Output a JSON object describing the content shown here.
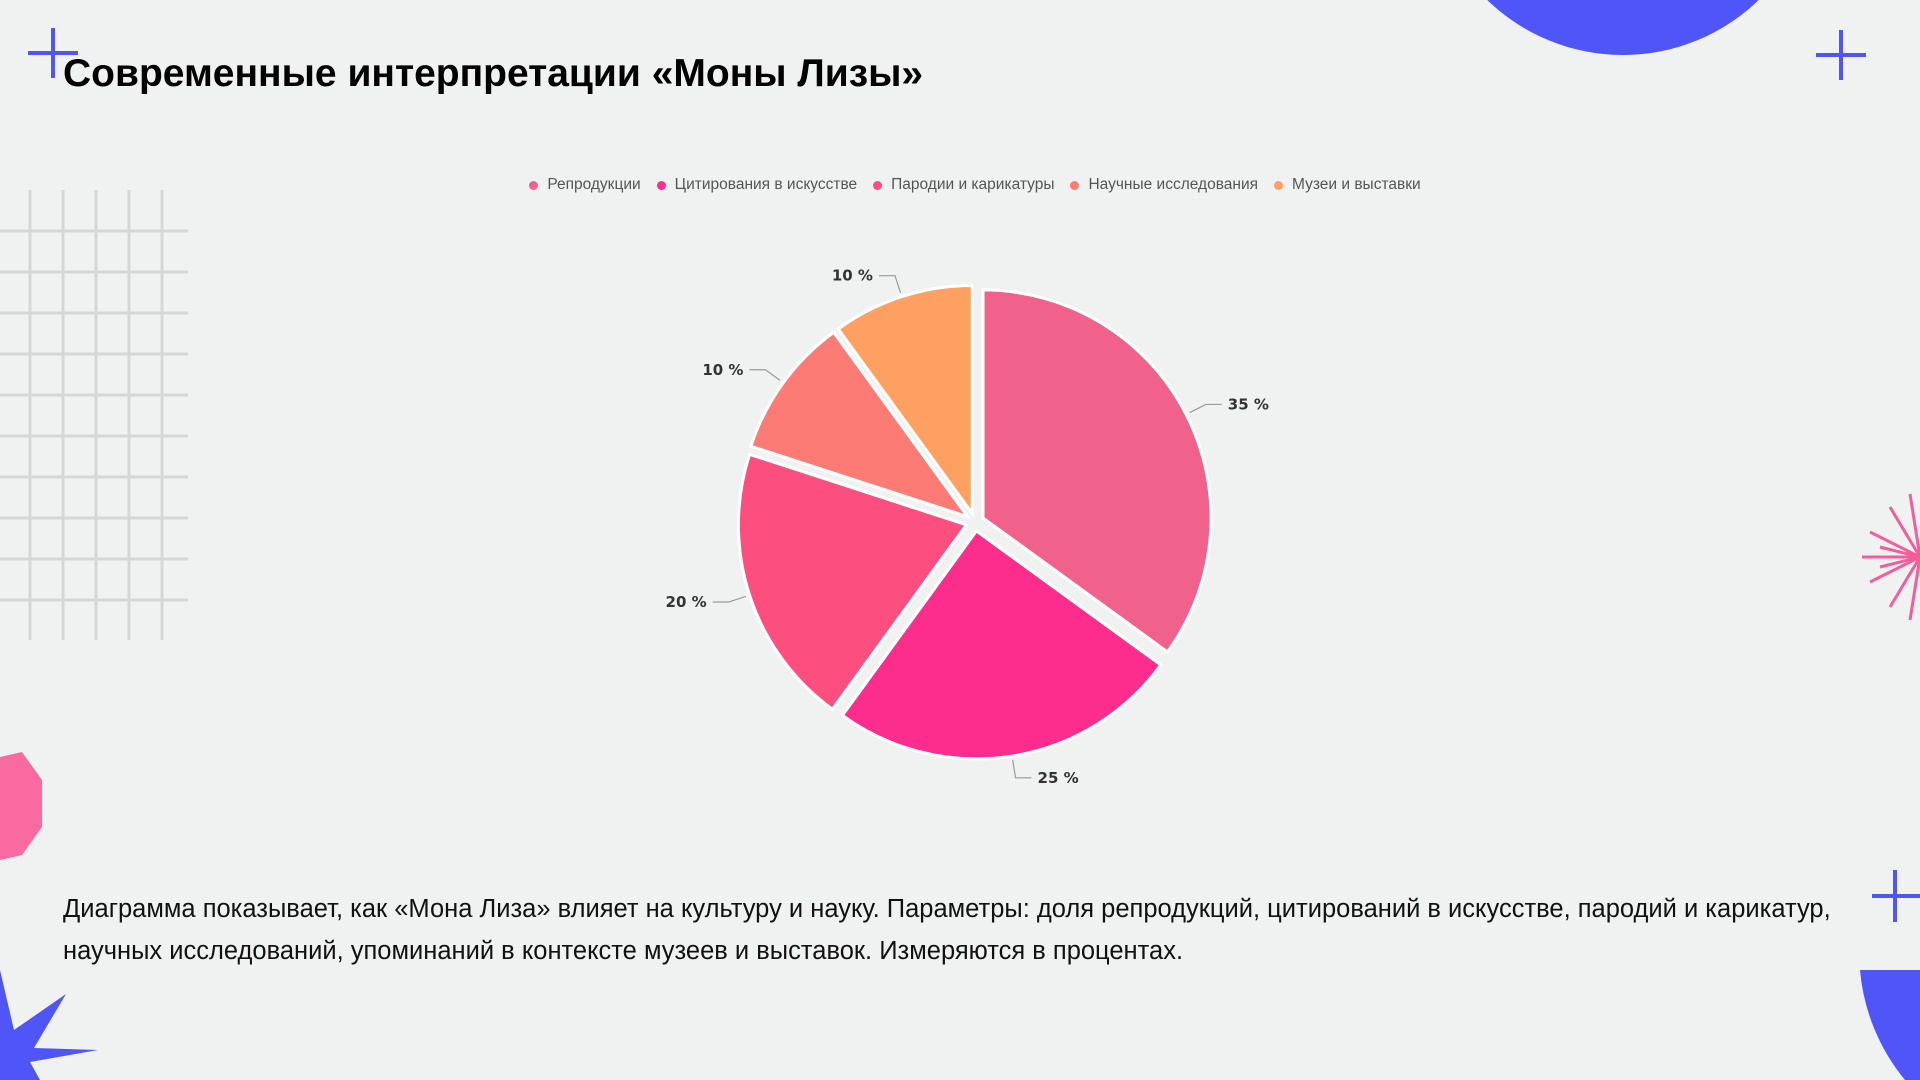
{
  "title": "Современные интерпретации «Моны Лизы»",
  "description": "Диаграмма показывает, как «Мона Лиза» влияет на культуру и науку. Параметры: доля репродукций, цитирований в искусстве, пародий и карикатур, научных исследований, упоминаний в контексте музеев и выставок. Измеряются в процентах.",
  "colors": {
    "background": "#f0f1f1",
    "accent_blue": "#4f55f7",
    "accent_pink": "#f45d9a",
    "grid_lines": "#d6d6d6"
  },
  "chart_data": {
    "type": "pie",
    "title": "",
    "legend_position": "top",
    "value_suffix": " %",
    "slices": [
      {
        "label": "Репродукции",
        "value": 35,
        "color": "#f0628c"
      },
      {
        "label": "Цитирования в искусстве",
        "value": 25,
        "color": "#fc2d8c"
      },
      {
        "label": "Пародии и карикатуры",
        "value": 20,
        "color": "#fd4f7f"
      },
      {
        "label": "Научные исследования",
        "value": 10,
        "color": "#fc7c75"
      },
      {
        "label": "Музеи и выставки",
        "value": 10,
        "color": "#fda061"
      }
    ]
  }
}
